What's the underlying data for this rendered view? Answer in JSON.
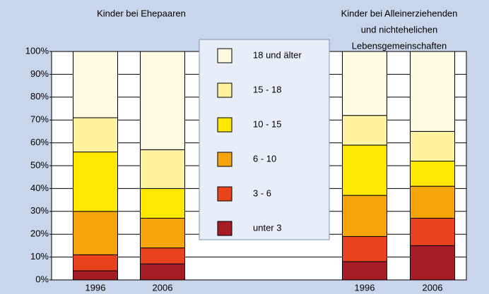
{
  "chart_data": {
    "type": "stacked_bar",
    "group_titles": [
      [
        "Kinder bei Ehepaaren"
      ],
      [
        "Kinder bei Alleinerziehenden",
        "und nichtehelichen",
        "Lebensgemeinschaften"
      ]
    ],
    "categories": [
      "1996",
      "2006",
      "1996",
      "2006"
    ],
    "series": [
      {
        "name": "unter 3",
        "color": "#a51c24",
        "values": [
          4,
          7,
          8,
          15
        ]
      },
      {
        "name": "3 - 6",
        "color": "#e8431c",
        "values": [
          7,
          7,
          11,
          12
        ]
      },
      {
        "name": "6 - 10",
        "color": "#f5a40a",
        "values": [
          19,
          13,
          18,
          14
        ]
      },
      {
        "name": "10 - 15",
        "color": "#ffe800",
        "values": [
          26,
          13,
          22,
          11
        ]
      },
      {
        "name": "15 - 18",
        "color": "#fff3a0",
        "values": [
          15,
          17,
          13,
          13
        ]
      },
      {
        "name": "18 und älter",
        "color": "#fffbe2",
        "values": [
          29,
          43,
          28,
          35
        ]
      }
    ],
    "ylim": [
      0,
      100
    ],
    "yticks": [
      {
        "value": 0,
        "label": "0%"
      },
      {
        "value": 10,
        "label": "10%"
      },
      {
        "value": 20,
        "label": "20%"
      },
      {
        "value": 30,
        "label": "30%"
      },
      {
        "value": 40,
        "label": "40%"
      },
      {
        "value": 50,
        "label": "50%"
      },
      {
        "value": 60,
        "label": "60%"
      },
      {
        "value": 70,
        "label": "70%"
      },
      {
        "value": 80,
        "label": "80%"
      },
      {
        "value": 90,
        "label": "90%"
      },
      {
        "value": 100,
        "label": "100%"
      }
    ],
    "grid": true
  }
}
